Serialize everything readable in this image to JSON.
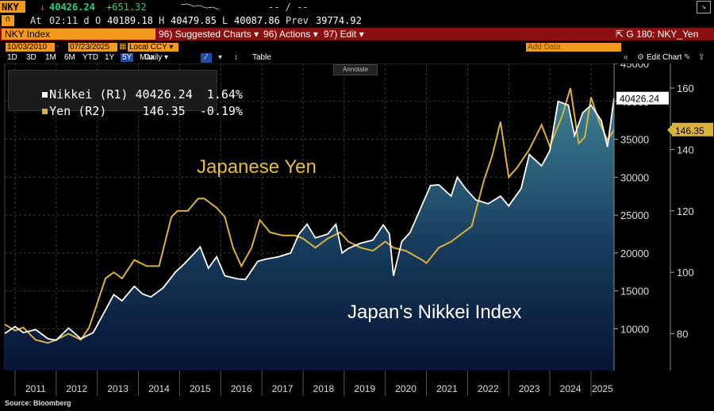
{
  "top": {
    "ticker": "NKY",
    "last": "40426.24",
    "change": "+651.32",
    "dashes": "-- / --",
    "at_label": "At",
    "time": "02:11 d",
    "open_label": "O",
    "open": "40189.18",
    "high_label": "H",
    "high": "40479.85",
    "low_label": "L",
    "low": "40087.86",
    "prev_label": "Prev",
    "prev": "39774.92"
  },
  "menu": {
    "security": "NKY Index",
    "suggested": "96) Suggested Charts",
    "actions": "96) Actions",
    "edit": "97) Edit",
    "page": "G 180: NKY_Yen"
  },
  "dates": {
    "start": "10/03/2010",
    "end": "07/23/2025",
    "currency": "Local CCY",
    "add_data": "Add Data",
    "edit_chart": "Edit Chart"
  },
  "periods": [
    "1D",
    "3D",
    "1M",
    "6M",
    "YTD",
    "1Y",
    "5Y",
    "Max"
  ],
  "active_period": "5Y",
  "freq": "Daily",
  "table_label": "Table",
  "annotate_label": "Annotate",
  "legend": {
    "nikkei": "Nikkei (R1) 40426.24  1.64%",
    "yen": "Yen (R2)     146.35  -0.19%"
  },
  "annotations": {
    "yen": "Japanese Yen",
    "nikkei": "Japan's Nikkei Index"
  },
  "last_labels": {
    "nikkei": "40426.24",
    "yen": "146.35"
  },
  "source": "Source: Bloomberg",
  "colors": {
    "nikkei": "#ffffff",
    "yen": "#d9b13b",
    "area_top": "#3d7f93",
    "area_bottom": "#061028",
    "menu_red": "#8b0f10",
    "orange": "#f39a1c"
  },
  "chart_data": {
    "type": "line",
    "x_ticks": [
      "2011",
      "2012",
      "2013",
      "2014",
      "2015",
      "2016",
      "2017",
      "2018",
      "2019",
      "2020",
      "2021",
      "2022",
      "2023",
      "2024",
      "2025"
    ],
    "y_left": {
      "ticks": [
        10000,
        15000,
        20000,
        25000,
        30000,
        35000,
        40000,
        45000
      ],
      "range": [
        4500,
        45000
      ]
    },
    "y_right": {
      "ticks": [
        80,
        100,
        120,
        140,
        160
      ],
      "range": [
        68,
        168
      ]
    },
    "series": [
      {
        "name": "Nikkei (R1)",
        "axis": "left",
        "x": [
          2010.75,
          2011.0,
          2011.2,
          2011.5,
          2011.8,
          2012.0,
          2012.3,
          2012.6,
          2012.9,
          2013.1,
          2013.4,
          2013.6,
          2013.9,
          2014.1,
          2014.3,
          2014.6,
          2014.9,
          2015.1,
          2015.4,
          2015.5,
          2015.7,
          2015.9,
          2016.1,
          2016.4,
          2016.6,
          2016.9,
          2017.1,
          2017.4,
          2017.7,
          2017.9,
          2018.1,
          2018.3,
          2018.6,
          2018.8,
          2018.95,
          2019.1,
          2019.4,
          2019.7,
          2019.95,
          2020.1,
          2020.2,
          2020.4,
          2020.6,
          2020.9,
          2021.1,
          2021.3,
          2021.6,
          2021.75,
          2021.95,
          2022.2,
          2022.5,
          2022.8,
          2023.0,
          2023.3,
          2023.5,
          2023.8,
          2024.0,
          2024.2,
          2024.45,
          2024.6,
          2024.8,
          2025.0,
          2025.25,
          2025.4,
          2025.56
        ],
        "y": [
          9400,
          10300,
          9500,
          9900,
          8700,
          8500,
          10100,
          8700,
          9500,
          11500,
          14500,
          13700,
          15600,
          14600,
          14200,
          15400,
          17500,
          18500,
          20200,
          20800,
          18000,
          19500,
          17000,
          16600,
          16500,
          18900,
          19200,
          19500,
          20000,
          22500,
          23800,
          22000,
          22500,
          23800,
          20000,
          20600,
          21300,
          21700,
          23700,
          22500,
          17000,
          21500,
          22700,
          26400,
          28900,
          29000,
          27500,
          30000,
          28500,
          27000,
          26500,
          27500,
          26200,
          28500,
          33000,
          31500,
          33500,
          40000,
          39500,
          35500,
          38500,
          39500,
          37500,
          34000,
          40426
        ]
      },
      {
        "name": "Yen (R2)",
        "axis": "right",
        "x": [
          2010.75,
          2011.0,
          2011.2,
          2011.5,
          2011.8,
          2012.0,
          2012.3,
          2012.6,
          2012.8,
          2013.0,
          2013.2,
          2013.4,
          2013.6,
          2013.9,
          2014.2,
          2014.5,
          2014.8,
          2014.95,
          2015.2,
          2015.45,
          2015.6,
          2015.9,
          2016.1,
          2016.3,
          2016.5,
          2016.75,
          2016.95,
          2017.2,
          2017.5,
          2017.8,
          2018.0,
          2018.3,
          2018.6,
          2018.9,
          2019.1,
          2019.4,
          2019.7,
          2020.0,
          2020.2,
          2020.5,
          2020.9,
          2021.0,
          2021.3,
          2021.6,
          2021.9,
          2022.1,
          2022.4,
          2022.6,
          2022.8,
          2023.0,
          2023.2,
          2023.5,
          2023.8,
          2024.0,
          2024.3,
          2024.5,
          2024.7,
          2024.85,
          2025.0,
          2025.2,
          2025.4,
          2025.56
        ],
        "y": [
          83,
          81,
          82,
          78,
          77,
          78,
          80,
          78,
          82,
          90,
          98,
          100,
          98,
          104,
          102,
          102,
          118,
          120,
          120,
          124,
          124,
          121,
          118,
          108,
          102,
          108,
          117,
          113,
          112,
          112,
          111,
          108,
          111,
          113,
          110,
          108,
          107,
          110,
          108,
          107,
          104,
          103,
          108,
          110,
          113,
          115,
          130,
          138,
          149,
          131,
          134,
          140,
          148,
          141,
          151,
          160,
          142,
          144,
          157,
          149,
          143,
          146.35
        ]
      }
    ]
  }
}
